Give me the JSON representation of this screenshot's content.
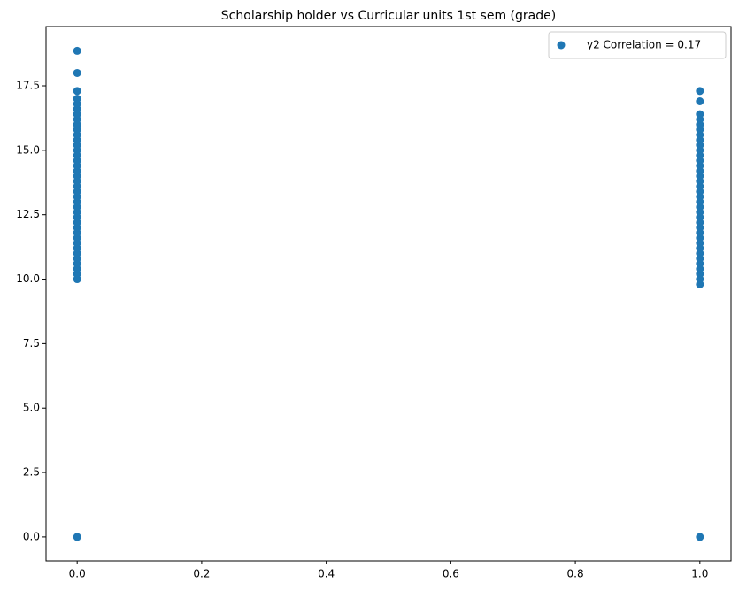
{
  "chart_data": {
    "type": "scatter",
    "title": "Scholarship holder vs Curricular units 1st sem (grade)",
    "series": [
      {
        "name": "y2 Correlation = 0.17",
        "color": "#1f77b4",
        "x": [
          0,
          0,
          0,
          0,
          0,
          0,
          0,
          0,
          0,
          0,
          0,
          0,
          0,
          0,
          0,
          0,
          0,
          0,
          0,
          0,
          0,
          0,
          0,
          0,
          0,
          0,
          0,
          0,
          0,
          0,
          0,
          0,
          0,
          0,
          0,
          0,
          0,
          0,
          0,
          0,
          1,
          1,
          1,
          1,
          1,
          1,
          1,
          1,
          1,
          1,
          1,
          1,
          1,
          1,
          1,
          1,
          1,
          1,
          1,
          1,
          1,
          1,
          1,
          1,
          1,
          1,
          1,
          1,
          1,
          1,
          1,
          1,
          1,
          1,
          1,
          1,
          1
        ],
        "values": [
          0,
          10,
          10.2,
          10.4,
          10.6,
          10.8,
          11,
          11.2,
          11.4,
          11.6,
          11.8,
          12,
          12.2,
          12.4,
          12.6,
          12.8,
          13,
          13.2,
          13.4,
          13.6,
          13.8,
          14,
          14.2,
          14.4,
          14.6,
          14.8,
          15,
          15.2,
          15.4,
          15.6,
          15.8,
          16,
          16.2,
          16.4,
          16.6,
          16.8,
          17,
          17.3,
          18,
          18.86,
          0,
          9.8,
          10,
          10.2,
          10.4,
          10.6,
          10.8,
          11,
          11.2,
          11.4,
          11.6,
          11.8,
          12,
          12.2,
          12.4,
          12.6,
          12.8,
          13,
          13.2,
          13.4,
          13.6,
          13.8,
          14,
          14.2,
          14.4,
          14.6,
          14.8,
          15,
          15.2,
          15.4,
          15.6,
          15.8,
          16,
          16.2,
          16.4,
          16.9,
          17.3
        ]
      }
    ],
    "xlim": [
      -0.05,
      1.05
    ],
    "ylim": [
      -0.93,
      19.8
    ],
    "xticks": [
      {
        "value": 0,
        "label": "0.0"
      },
      0.2,
      0.4,
      0.6,
      0.8,
      {
        "value": 1,
        "label": "1.0"
      }
    ],
    "yticks": [
      {
        "value": 0,
        "label": "0.0"
      },
      2.5,
      {
        "value": 5,
        "label": "5.0"
      },
      7.5,
      {
        "value": 10,
        "label": "10.0"
      },
      12.5,
      {
        "value": 15,
        "label": "15.0"
      },
      17.5
    ],
    "grid": false,
    "legend": "upper right"
  }
}
